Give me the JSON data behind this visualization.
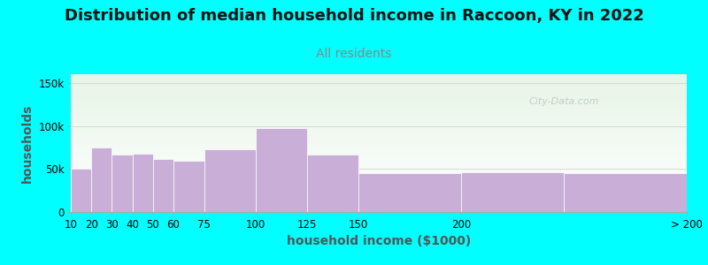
{
  "title": "Distribution of median household income in Raccoon, KY in 2022",
  "subtitle": "All residents",
  "xlabel": "household income ($1000)",
  "ylabel": "households",
  "background_color": "#00FFFF",
  "bar_color": "#C9AED8",
  "bar_edge_color": "#ffffff",
  "ylim": [
    0,
    160000
  ],
  "yticks": [
    0,
    50000,
    100000,
    150000
  ],
  "ytick_labels": [
    "0",
    "50k",
    "100k",
    "150k"
  ],
  "bin_edges": [
    10,
    20,
    30,
    40,
    50,
    60,
    75,
    100,
    125,
    150,
    200,
    250,
    310
  ],
  "xtick_positions": [
    10,
    20,
    30,
    40,
    50,
    60,
    75,
    100,
    125,
    150,
    200,
    310
  ],
  "xtick_labels": [
    "10",
    "20",
    "30",
    "40",
    "50",
    "60",
    "75",
    "100",
    "125",
    "150",
    "200",
    "> 200"
  ],
  "bar_heights": [
    50000,
    75000,
    67000,
    68000,
    62000,
    60000,
    73000,
    97000,
    67000,
    45000,
    46000,
    45000
  ],
  "watermark": "City-Data.com",
  "title_fontsize": 13,
  "subtitle_fontsize": 10,
  "subtitle_color": "#888888",
  "title_color": "#111111",
  "axis_label_fontsize": 10,
  "tick_fontsize": 8.5,
  "axis_label_color": "#555555"
}
